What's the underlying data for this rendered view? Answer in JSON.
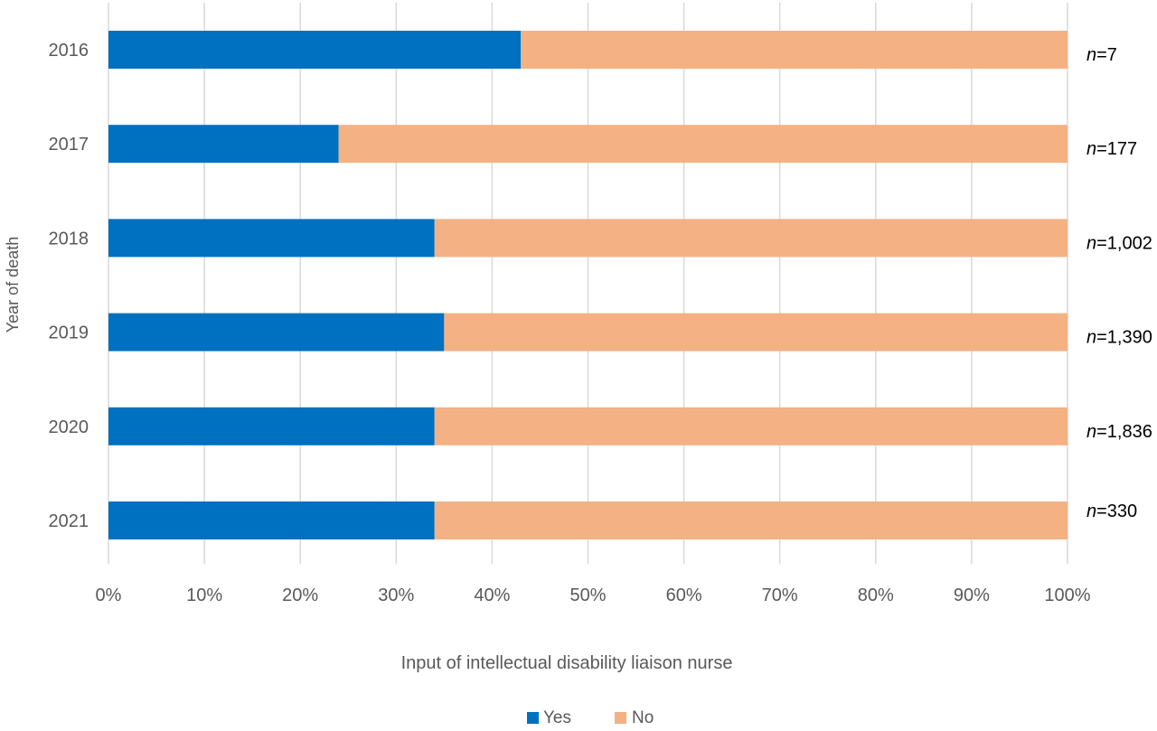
{
  "chart_data": {
    "type": "bar",
    "orientation": "horizontal",
    "stacked": "percent",
    "categories": [
      "2016",
      "2017",
      "2018",
      "2019",
      "2020",
      "2021"
    ],
    "series": [
      {
        "name": "Yes",
        "values": [
          43,
          24,
          34,
          35,
          34,
          34
        ],
        "color": "#0070C0"
      },
      {
        "name": "No",
        "values": [
          57,
          76,
          66,
          65,
          66,
          66
        ],
        "color": "#F4B183"
      }
    ],
    "n_labels": [
      "7",
      "177",
      "1,002",
      "1,390",
      "1,836",
      "330"
    ],
    "n_prefix": "n",
    "x_ticks": [
      "0%",
      "10%",
      "20%",
      "30%",
      "40%",
      "50%",
      "60%",
      "70%",
      "80%",
      "90%",
      "100%"
    ],
    "xlim": [
      0,
      100
    ],
    "xlabel": "Input of intellectual disability liaison nurse",
    "ylabel": "Year of death",
    "grid": true,
    "legend_position": "bottom",
    "gridline_color": "#D9D9D9",
    "text_color": "#595959"
  }
}
